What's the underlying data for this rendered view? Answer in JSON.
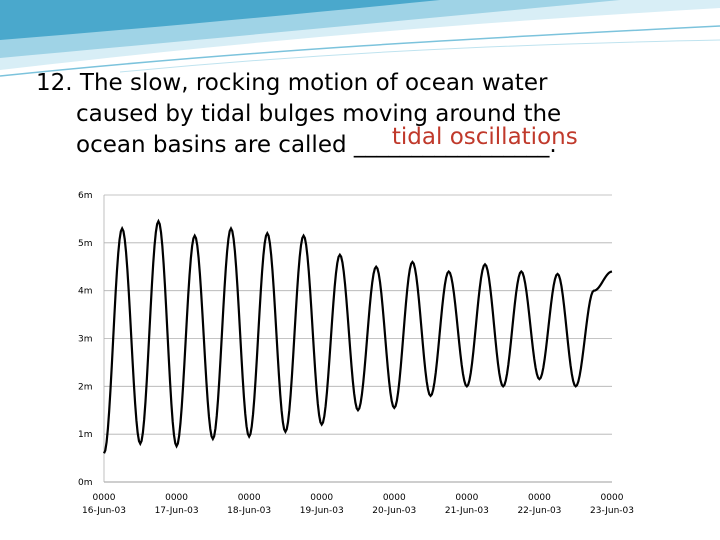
{
  "colors": {
    "swoosh_light": "#d8eef6",
    "swoosh_mid": "#9fd3e6",
    "swoosh_dark": "#4aa8cc",
    "answer_color": "#c0392b",
    "grid_color": "#b0b0b0",
    "line_color": "#000000"
  },
  "question": {
    "number": "12.",
    "line1": "The slow, rocking motion of ocean water",
    "line2": "caused by tidal bulges moving around the",
    "line3_prefix": "ocean basins are called ",
    "blank": "_________________",
    "suffix": ".",
    "answer": "tidal oscillations"
  },
  "chart_data": {
    "type": "line",
    "title": "",
    "xlabel": "",
    "ylabel": "",
    "ylim": [
      0,
      6
    ],
    "xlim": [
      0,
      7
    ],
    "grid": "horizontal",
    "y_ticks": [
      "0m",
      "1m",
      "2m",
      "3m",
      "4m",
      "5m",
      "6m"
    ],
    "y_tick_values": [
      0,
      1,
      2,
      3,
      4,
      5,
      6
    ],
    "x_ticks": [
      {
        "time": "0000",
        "date": "16-Jun-03"
      },
      {
        "time": "0000",
        "date": "17-Jun-03"
      },
      {
        "time": "0000",
        "date": "18-Jun-03"
      },
      {
        "time": "0000",
        "date": "19-Jun-03"
      },
      {
        "time": "0000",
        "date": "20-Jun-03"
      },
      {
        "time": "0000",
        "date": "21-Jun-03"
      },
      {
        "time": "0000",
        "date": "22-Jun-03"
      },
      {
        "time": "0000",
        "date": "23-Jun-03"
      }
    ],
    "series": [
      {
        "name": "",
        "x": [
          0.0,
          0.25,
          0.5,
          0.75,
          1.0,
          1.25,
          1.5,
          1.75,
          2.0,
          2.25,
          2.5,
          2.75,
          3.0,
          3.25,
          3.5,
          3.75,
          4.0,
          4.25,
          4.5,
          4.75,
          5.0,
          5.25,
          5.5,
          5.75,
          6.0,
          6.25,
          6.5,
          6.75,
          7.0
        ],
        "y": [
          0.6,
          5.3,
          0.8,
          5.45,
          0.75,
          5.15,
          0.9,
          5.3,
          0.95,
          5.2,
          1.05,
          5.15,
          1.2,
          4.75,
          1.5,
          4.5,
          1.55,
          4.6,
          1.8,
          4.4,
          2.0,
          4.55,
          2.0,
          4.4,
          2.15,
          4.35,
          2.0,
          4.0,
          4.4
        ]
      }
    ]
  }
}
